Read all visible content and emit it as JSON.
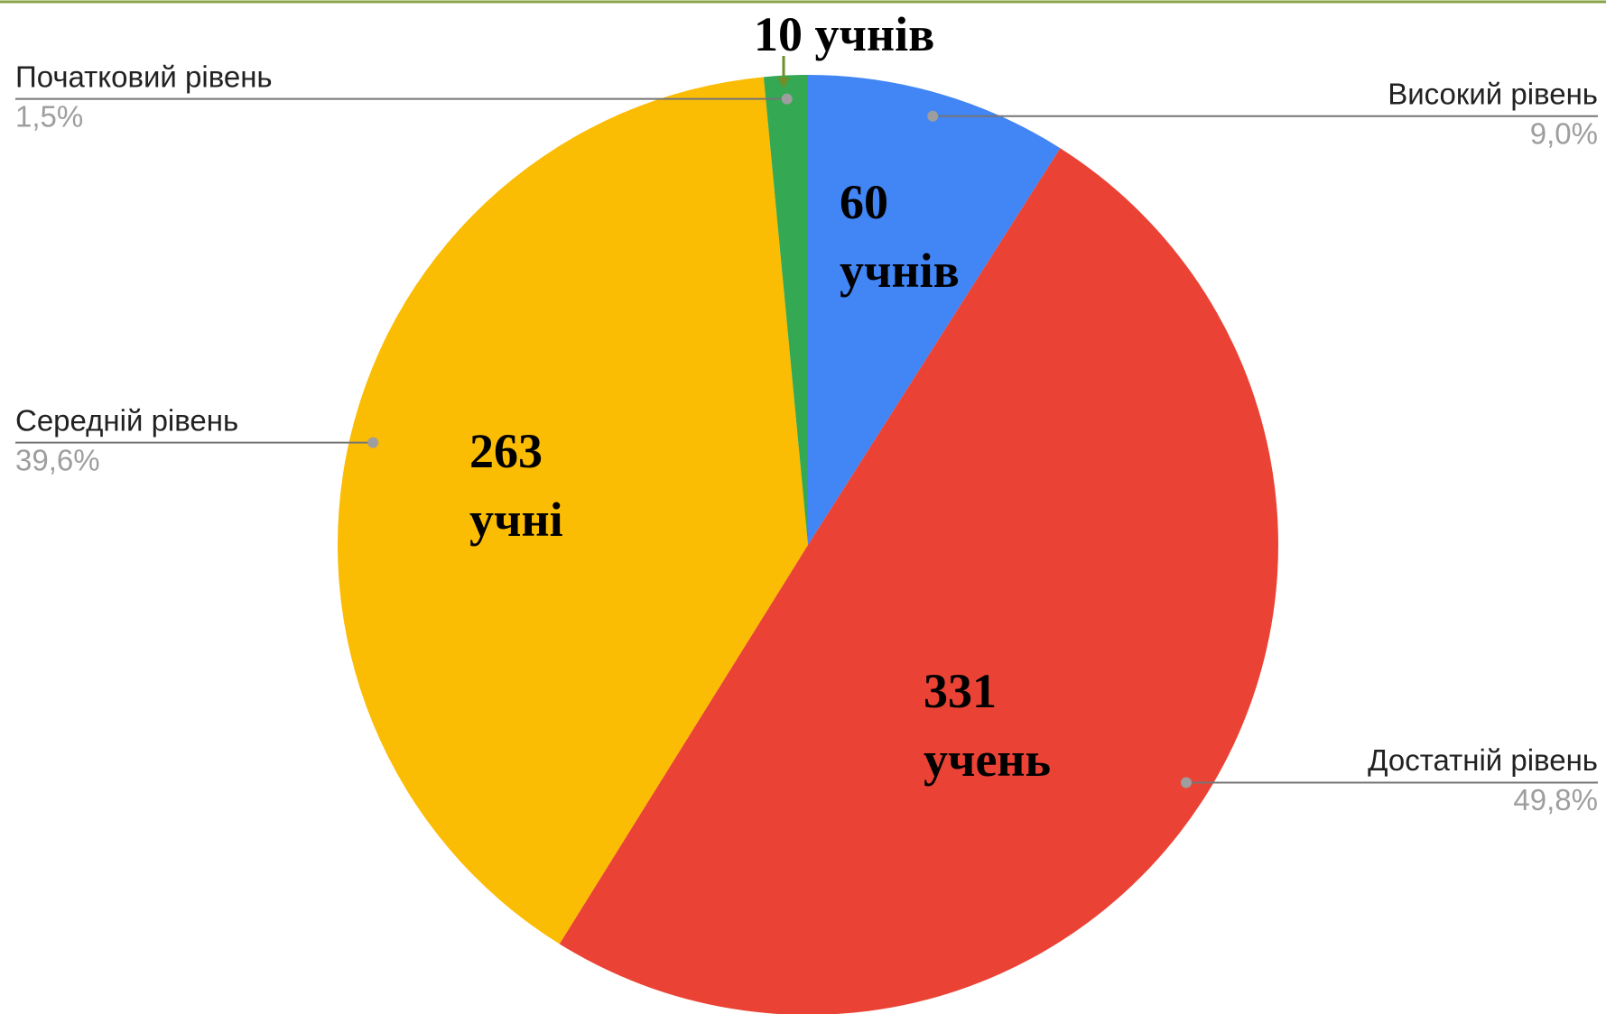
{
  "chart_data": {
    "type": "pie",
    "categories": [
      "Високий рівень",
      "Достатній рівень",
      "Середній рівень",
      "Початковий рівень"
    ],
    "values": [
      9.0,
      49.8,
      39.6,
      1.5
    ],
    "value_labels": [
      "9,0%",
      "49,8%",
      "39,6%",
      "1,5%"
    ],
    "colors": [
      "#4285f4",
      "#ea4335",
      "#fbbc04",
      "#34a853"
    ],
    "annotations": [
      "60 учнів",
      "331 учень",
      "263 учні",
      "10 учнів"
    ]
  }
}
